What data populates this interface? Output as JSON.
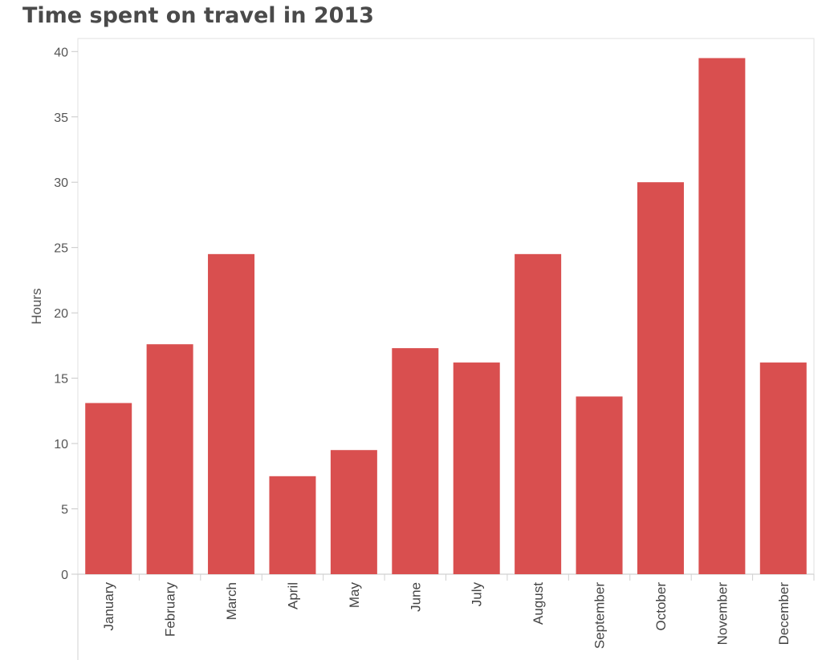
{
  "chart_data": {
    "type": "bar",
    "title": "Time spent on travel in 2013",
    "ylabel": "Hours",
    "xlabel": "",
    "categories": [
      "January",
      "February",
      "March",
      "April",
      "May",
      "June",
      "July",
      "August",
      "September",
      "October",
      "November",
      "December"
    ],
    "values": [
      13.1,
      17.6,
      24.5,
      7.5,
      9.5,
      17.3,
      16.2,
      24.5,
      13.6,
      30.0,
      39.5,
      16.2
    ],
    "ylim": [
      0,
      41
    ],
    "yticks": [
      0,
      5,
      10,
      15,
      20,
      25,
      30,
      35,
      40
    ],
    "bar_color": "#d94f4f",
    "grid": false
  }
}
